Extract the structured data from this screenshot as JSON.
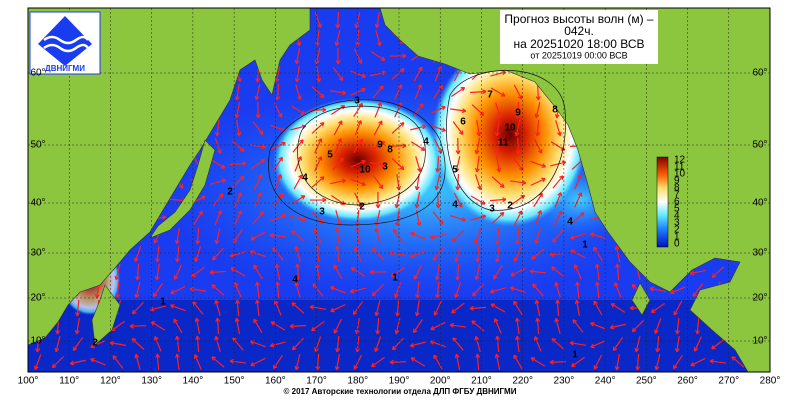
{
  "header": {
    "title_line1": "Прогноз высоты волн (м) –",
    "title_line2": "042ч.",
    "forecast": "на 20251020 18:00 ВСВ",
    "issued": "от 20251019 00:00 ВСВ"
  },
  "logo": "ДВНИГМИ",
  "footer": "© 2017 Авторские технологии отдела ДЛП ФГБУ ДВНИГМИ",
  "longitudes": [
    "100°",
    "110°",
    "120°",
    "130°",
    "140°",
    "150°",
    "160°",
    "170°",
    "180°",
    "190°",
    "200°",
    "210°",
    "220°",
    "230°",
    "240°",
    "250°",
    "260°",
    "270°",
    "280°"
  ],
  "latitudes": [
    "60°",
    "50°",
    "40°",
    "30°",
    "20°",
    "10°"
  ],
  "colorbar": {
    "labels": [
      12,
      11,
      10,
      9,
      8,
      7,
      6,
      5,
      4,
      3,
      2,
      1,
      0
    ]
  },
  "contour_labels": [
    3,
    5,
    4,
    4,
    10,
    9,
    8,
    3,
    2,
    3,
    4,
    6,
    7,
    8,
    5,
    11,
    10,
    9,
    4,
    3,
    2,
    2,
    4,
    1,
    1,
    1,
    2,
    1
  ]
}
